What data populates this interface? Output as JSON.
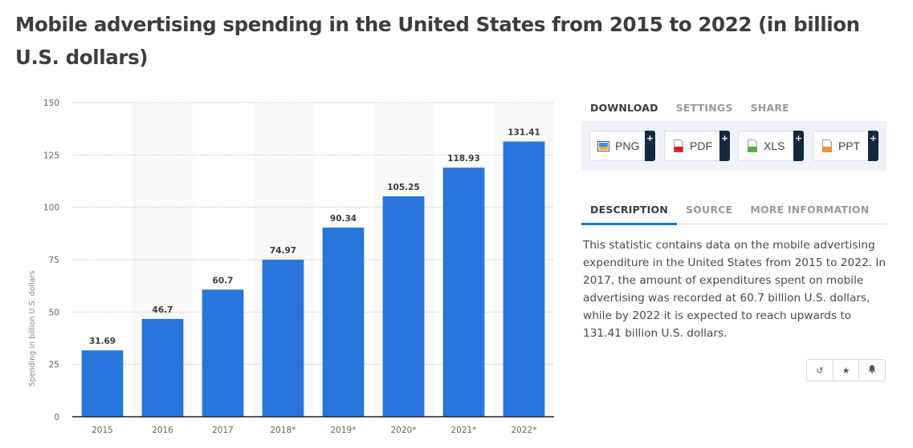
{
  "page": {
    "title": "Mobile advertising spending in the United States from 2015 to 2022 (in billion U.S. dollars)"
  },
  "download": {
    "tabs": [
      "DOWNLOAD",
      "SETTINGS",
      "SHARE"
    ],
    "active_tab": "DOWNLOAD",
    "buttons": [
      {
        "label": "PNG",
        "icon": "png-image-icon",
        "plus": "+"
      },
      {
        "label": "PDF",
        "icon": "pdf-file-icon",
        "plus": "+"
      },
      {
        "label": "XLS",
        "icon": "xls-file-icon",
        "plus": "+"
      },
      {
        "label": "PPT",
        "icon": "ppt-file-icon",
        "plus": "+"
      }
    ]
  },
  "info": {
    "tabs": [
      "DESCRIPTION",
      "SOURCE",
      "MORE INFORMATION"
    ],
    "active_tab": "DESCRIPTION",
    "description": "This statistic contains data on the mobile advertising expenditure in the United States from 2015 to 2022. In 2017, the amount of expenditures spent on mobile advertising was recorded at 60.7 billion U.S. dollars, while by 2022 it is expected to reach upwards to 131.41 billion U.S. dollars."
  },
  "actions": [
    {
      "name": "history-icon",
      "glyph": "↺"
    },
    {
      "name": "star-icon",
      "glyph": "★"
    },
    {
      "name": "bell-icon",
      "glyph": "🔔"
    }
  ],
  "colors": {
    "bar": "#2876dd",
    "band": "#f9f9f9",
    "grid": "#c8c8c8",
    "accent": "#0f7ad6"
  },
  "chart_data": {
    "type": "bar",
    "title": "Mobile advertising spending in the United States from 2015 to 2022 (in billion U.S. dollars)",
    "xlabel": "",
    "ylabel": "Spending in billion U.S. dollars",
    "categories": [
      "2015",
      "2016",
      "2017",
      "2018*",
      "2019*",
      "2020*",
      "2021*",
      "2022*"
    ],
    "values": [
      31.69,
      46.7,
      60.7,
      74.97,
      90.34,
      105.25,
      118.93,
      131.41
    ],
    "value_labels": [
      "31.69",
      "46.7",
      "60.7",
      "74.97",
      "90.34",
      "105.25",
      "118.93",
      "131.41"
    ],
    "ylim": [
      0,
      150
    ],
    "yticks": [
      0,
      25,
      50,
      75,
      100,
      125,
      150
    ],
    "grid": true,
    "legend": "none"
  }
}
